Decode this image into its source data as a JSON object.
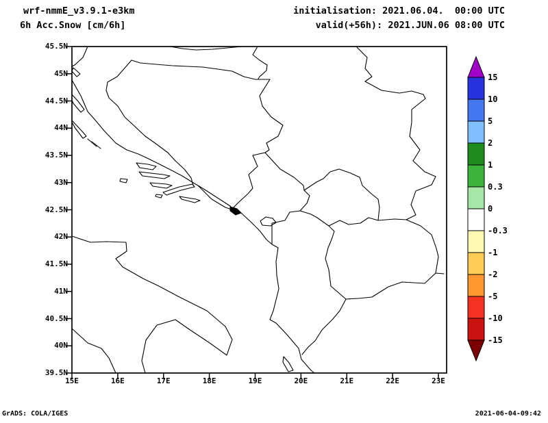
{
  "header": {
    "model": "wrf-nmmE_v3.9.1-e3km",
    "field": "6h Acc.Snow [cm/6h]",
    "init": "initialisation: 2021.06.04.  00:00 UTC",
    "valid": "valid(+56h): 2021.JUN.06 08:00 UTC"
  },
  "axes": {
    "y_labels": [
      "45.5N",
      "45N",
      "44.5N",
      "44N",
      "43.5N",
      "43N",
      "42.5N",
      "42N",
      "41.5N",
      "41N",
      "40.5N",
      "40N",
      "39.5N"
    ],
    "x_labels": [
      "15E",
      "16E",
      "17E",
      "18E",
      "19E",
      "20E",
      "21E",
      "22E",
      "23E"
    ]
  },
  "colorbar": {
    "labels": [
      "15",
      "10",
      "5",
      "2",
      "1",
      "0.3",
      "0",
      "-0.3",
      "-1",
      "-2",
      "-5",
      "-10",
      "-15"
    ],
    "colors": [
      "#A000C8",
      "#2833E0",
      "#4477F0",
      "#7FBFFF",
      "#1E8C1E",
      "#3CB43C",
      "#A8E6A8",
      "#FFFFFF",
      "#FFF9B4",
      "#FFCC55",
      "#FF9830",
      "#F53222",
      "#CC1111",
      "#7E0000"
    ]
  },
  "footer": {
    "left": "GrADS: COLA/IGES",
    "right": "2021-06-04-09:42"
  }
}
